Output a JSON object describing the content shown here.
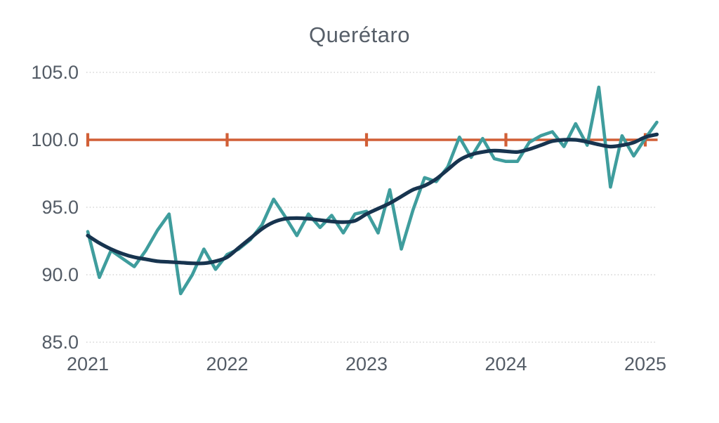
{
  "title": "Querétaro",
  "colors": {
    "monthly_line": "#3f9d9d",
    "trend_line": "#17344f",
    "reference_line": "#d15f36",
    "gridline": "#cbcbcb",
    "axis_label": "#545c66",
    "title_text": "#565e68",
    "background": "#ffffff"
  },
  "chart_data": {
    "type": "line",
    "title": "Querétaro",
    "x_start": "2021-01",
    "x_frequency": "monthly",
    "x_tick_labels": [
      "2021",
      "2022",
      "2023",
      "2024",
      "2025"
    ],
    "y_tick_labels": [
      "105.0",
      "100.0",
      "95.0",
      "90.0",
      "85.0"
    ],
    "y_ticks": [
      105.0,
      100.0,
      95.0,
      90.0,
      85.0
    ],
    "ylim": [
      85.0,
      105.0
    ],
    "grid": "dotted-horizontal",
    "legend_position": "none",
    "reference_line": {
      "value": 100.0,
      "tick_years": [
        "2021",
        "2022",
        "2023",
        "2024",
        "2025"
      ]
    },
    "series": [
      {
        "name": "monthly-index",
        "style": "jagged",
        "values": [
          93.2,
          89.8,
          91.8,
          91.2,
          90.6,
          91.8,
          93.3,
          94.5,
          88.6,
          90.0,
          91.9,
          90.4,
          91.5,
          91.9,
          92.6,
          93.7,
          95.6,
          94.3,
          92.9,
          94.5,
          93.5,
          94.4,
          93.1,
          94.5,
          94.7,
          93.1,
          96.3,
          91.9,
          94.8,
          97.2,
          96.9,
          98.0,
          100.2,
          98.7,
          100.1,
          98.6,
          98.4,
          98.4,
          99.8,
          100.3,
          100.6,
          99.5,
          101.2,
          99.6,
          103.9,
          96.5,
          100.3,
          98.8,
          100.1,
          101.3
        ]
      },
      {
        "name": "trend",
        "style": "smooth",
        "values": [
          92.9,
          92.35,
          91.9,
          91.55,
          91.3,
          91.15,
          91.0,
          90.95,
          90.9,
          90.85,
          90.85,
          91.0,
          91.3,
          92.0,
          92.7,
          93.4,
          93.9,
          94.15,
          94.2,
          94.15,
          94.05,
          93.95,
          93.9,
          94.0,
          94.5,
          94.9,
          95.3,
          95.8,
          96.3,
          96.6,
          97.1,
          97.8,
          98.5,
          98.9,
          99.1,
          99.2,
          99.15,
          99.1,
          99.3,
          99.6,
          99.9,
          100.0,
          100.0,
          99.85,
          99.65,
          99.5,
          99.6,
          99.8,
          100.2,
          100.4
        ]
      }
    ]
  }
}
